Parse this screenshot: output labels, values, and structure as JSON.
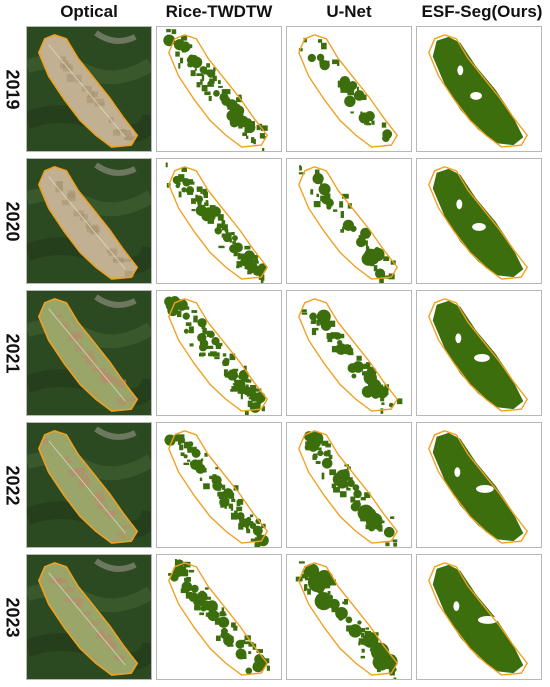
{
  "columns": [
    "Optical",
    "Rice-TWDTW",
    "U-Net",
    "ESF-Seg(Ours)"
  ],
  "rows": [
    "2019",
    "2020",
    "2021",
    "2022",
    "2023"
  ],
  "colors": {
    "rice": "#3c6e0d",
    "boundary": "#f0a020",
    "forest": "#2c4a22",
    "field": "#c2b092",
    "field_green": "#9aa56a"
  }
}
